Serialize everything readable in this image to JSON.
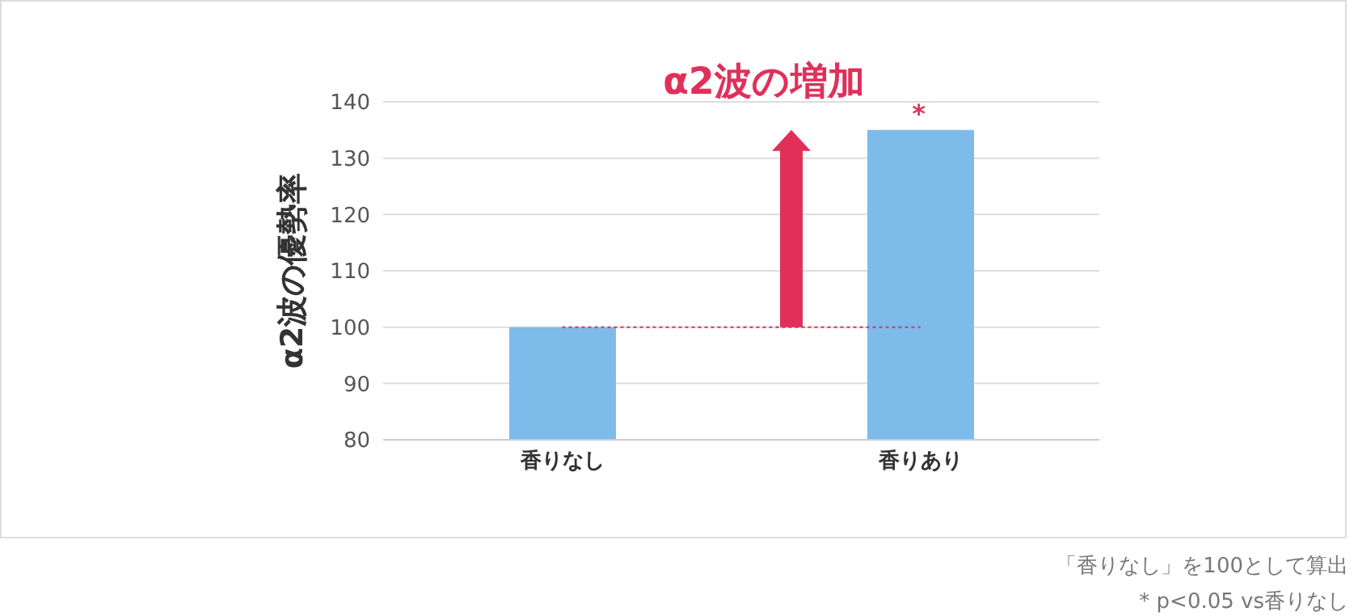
{
  "chart_data": {
    "type": "bar",
    "categories": [
      "香りなし",
      "香りあり"
    ],
    "values": [
      100,
      135
    ],
    "color": "#7dbbea",
    "ylabel": "α2波の優勢率",
    "ylim": [
      80,
      140
    ],
    "yticks": [
      80,
      90,
      100,
      110,
      120,
      130,
      140
    ],
    "grid": "y",
    "ref_lines": [
      {
        "axis": "y",
        "value": 100,
        "color": "#e0305a",
        "line_style": "dotted"
      }
    ],
    "annotations": [
      "α2波の増加",
      "*",
      "「香りなし」を100として算出",
      "* p<0.05 vs香りなし"
    ]
  }
}
